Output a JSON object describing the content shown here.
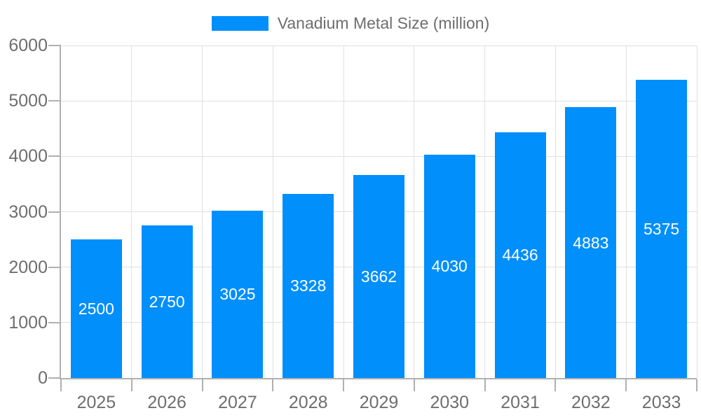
{
  "legend": {
    "label": "Vanadium Metal Size (million)",
    "swatch_color": "#008FFB"
  },
  "chart_data": {
    "type": "bar",
    "title": "Vanadium Metal Size (million)",
    "series_name": "Vanadium Metal Size (million)",
    "categories": [
      "2025",
      "2026",
      "2027",
      "2028",
      "2029",
      "2030",
      "2031",
      "2032",
      "2033"
    ],
    "values": [
      2500,
      2750,
      3025,
      3328,
      3662,
      4030,
      4436,
      4883,
      5375
    ],
    "xlabel": "",
    "ylabel": "",
    "ylim": [
      0,
      6000
    ],
    "ytick_interval": 1000,
    "yticks": [
      0,
      1000,
      2000,
      3000,
      4000,
      5000,
      6000
    ],
    "grid": true,
    "legend_position": "top",
    "bar_color": "#008FFB",
    "bar_label_color": "#ffffff",
    "axis_label_color": "#6e6e6e",
    "axis_line_color": "#b0b0b0",
    "grid_color": "#e0e0e0"
  }
}
